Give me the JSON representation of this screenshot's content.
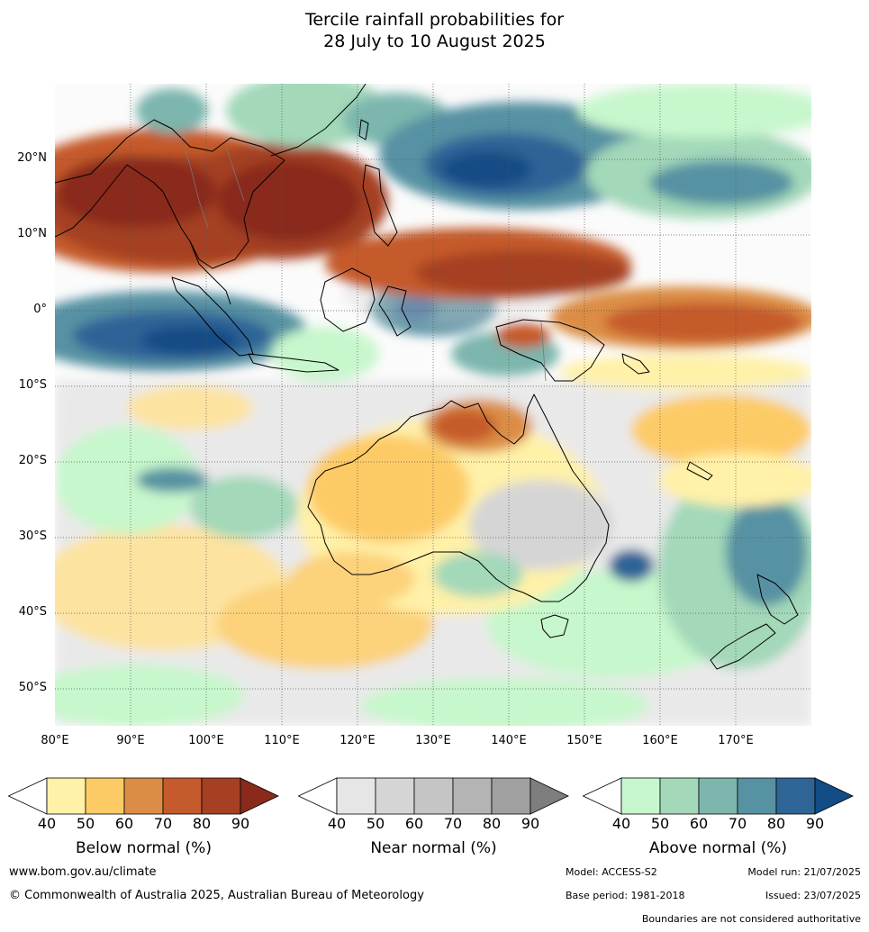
{
  "title_line1": "Tercile rainfall probabilities for",
  "title_line2": "28 July to 10 August 2025",
  "map": {
    "lat_labels": [
      "20°N",
      "10°N",
      "0°",
      "10°S",
      "20°S",
      "30°S",
      "40°S",
      "50°S"
    ],
    "lon_labels": [
      "80°E",
      "90°E",
      "100°E",
      "110°E",
      "120°E",
      "130°E",
      "140°E",
      "150°E",
      "160°E",
      "170°E"
    ]
  },
  "colorbars": [
    {
      "caption": "Below normal (%)",
      "ticks": [
        "40",
        "50",
        "60",
        "70",
        "80",
        "90"
      ],
      "colors": [
        "#ffffff",
        "#fff1a8",
        "#fdcb66",
        "#dc8d45",
        "#c55a2c",
        "#a54024",
        "#8a2a1c"
      ]
    },
    {
      "caption": "Near normal (%)",
      "ticks": [
        "40",
        "50",
        "60",
        "70",
        "80",
        "90"
      ],
      "colors": [
        "#ffffff",
        "#e6e6e6",
        "#d5d5d5",
        "#c5c5c5",
        "#b4b4b4",
        "#a0a0a0",
        "#7e7e7e"
      ]
    },
    {
      "caption": "Above normal (%)",
      "ticks": [
        "40",
        "50",
        "60",
        "70",
        "80",
        "90"
      ],
      "colors": [
        "#ffffff",
        "#c7f7cc",
        "#a3d8b9",
        "#7cb6ad",
        "#5792a3",
        "#2f6497",
        "#124c85"
      ]
    }
  ],
  "footer": {
    "website": "www.bom.gov.au/climate",
    "copyright": "© Commonwealth of Australia 2025, Australian Bureau of Meteorology",
    "model": "Model: ACCESS-S2",
    "model_run": "Model run: 21/07/2025",
    "base_period": "Base period: 1981-2018",
    "issued": "Issued: 23/07/2025",
    "disclaimer": "Boundaries are not considered authoritative"
  }
}
